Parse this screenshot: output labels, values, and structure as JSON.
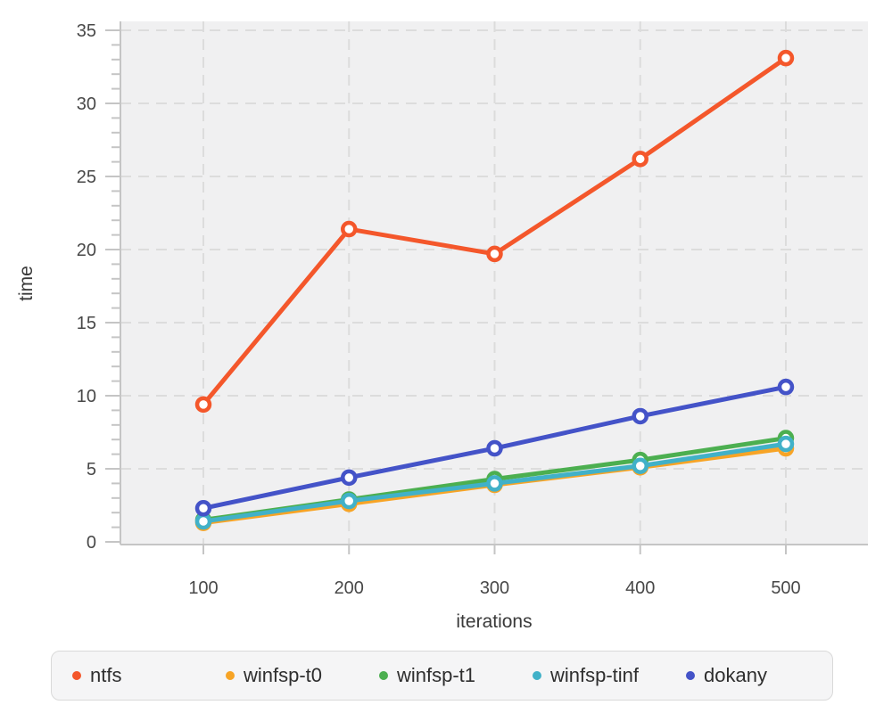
{
  "chart_data": {
    "type": "line",
    "title": "",
    "xlabel": "iterations",
    "ylabel": "time",
    "x": [
      100,
      200,
      300,
      400,
      500
    ],
    "x_tick_labels": [
      "100",
      "200",
      "300",
      "400",
      "500"
    ],
    "y_ticks": [
      0,
      5,
      10,
      15,
      20,
      25,
      30,
      35
    ],
    "y_minor_tick_step": 1,
    "xlim": [
      43,
      557
    ],
    "ylim": [
      0,
      35.7
    ],
    "grid": "dashed",
    "legend_position": "bottom",
    "series": [
      {
        "name": "ntfs",
        "color": "#f4572b",
        "values": [
          9.4,
          21.4,
          19.7,
          26.2,
          33.1
        ]
      },
      {
        "name": "winfsp-t0",
        "color": "#f7a426",
        "values": [
          1.3,
          2.6,
          3.9,
          5.1,
          6.4
        ]
      },
      {
        "name": "winfsp-t1",
        "color": "#4caf50",
        "values": [
          1.5,
          2.9,
          4.3,
          5.6,
          7.1
        ]
      },
      {
        "name": "winfsp-tinf",
        "color": "#41b1c8",
        "values": [
          1.4,
          2.8,
          4.0,
          5.2,
          6.7
        ]
      },
      {
        "name": "dokany",
        "color": "#4453c8",
        "values": [
          2.3,
          4.4,
          6.4,
          8.6,
          10.6
        ]
      }
    ],
    "style": {
      "plot_bg": "#f0f0f1",
      "grid_color": "#dcdcdc",
      "axis_color": "#c5c5c5",
      "tick_label_color": "#484848",
      "axis_title_color": "#3a3a3a",
      "marker_fill": "#ffffff"
    }
  }
}
